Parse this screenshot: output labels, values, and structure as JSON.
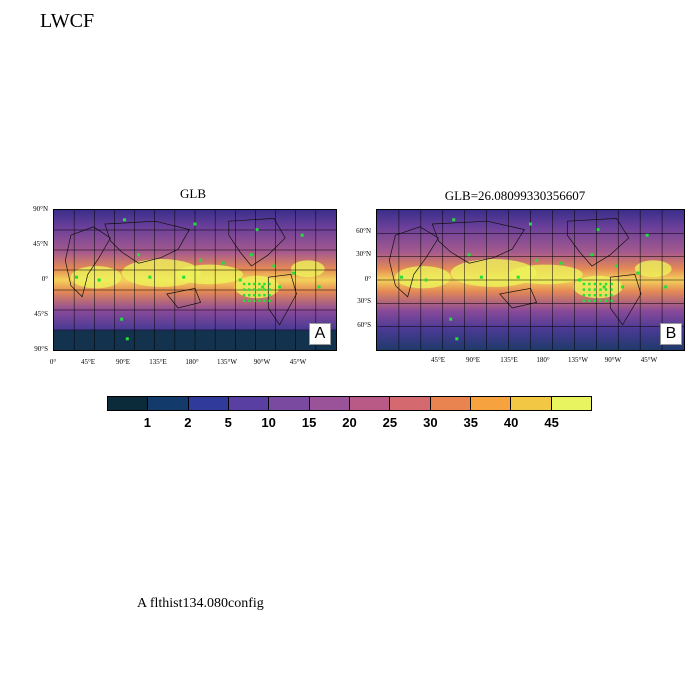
{
  "page_title": "LWCF",
  "panels": [
    {
      "title": "GLB",
      "label": "A",
      "y_ticks": [
        "90°N",
        "45°N",
        "0°",
        "45°S",
        "90°S"
      ],
      "x_ticks": [
        "0°",
        "45°E",
        "90°E",
        "135°E",
        "180°",
        "135°W",
        "90°W",
        "45°W"
      ]
    },
    {
      "title": "GLB=26.08099330356607",
      "label": "B",
      "y_ticks": [
        "60°N",
        "30°N",
        "0°",
        "30°S",
        "60°S"
      ],
      "x_ticks": [
        "45°E",
        "90°E",
        "135°E",
        "180°",
        "135°W",
        "90°W",
        "45°W"
      ]
    }
  ],
  "colorbar": {
    "labels": [
      "1",
      "2",
      "5",
      "10",
      "15",
      "20",
      "25",
      "30",
      "35",
      "40",
      "45"
    ],
    "colors": [
      "#0b2a3a",
      "#123a6a",
      "#2f3a9a",
      "#5a3fa3",
      "#7a4aa0",
      "#9a5298",
      "#b85a85",
      "#d46a6f",
      "#e98350",
      "#f5a23f",
      "#f2c744",
      "#e8f560"
    ]
  },
  "footer": "A  flthist134.080config",
  "colors": {
    "field_low": "#0b2a3a",
    "field_mid": "#7a4aa0",
    "field_high": "#f2e85a",
    "marker": "#22e03a"
  }
}
